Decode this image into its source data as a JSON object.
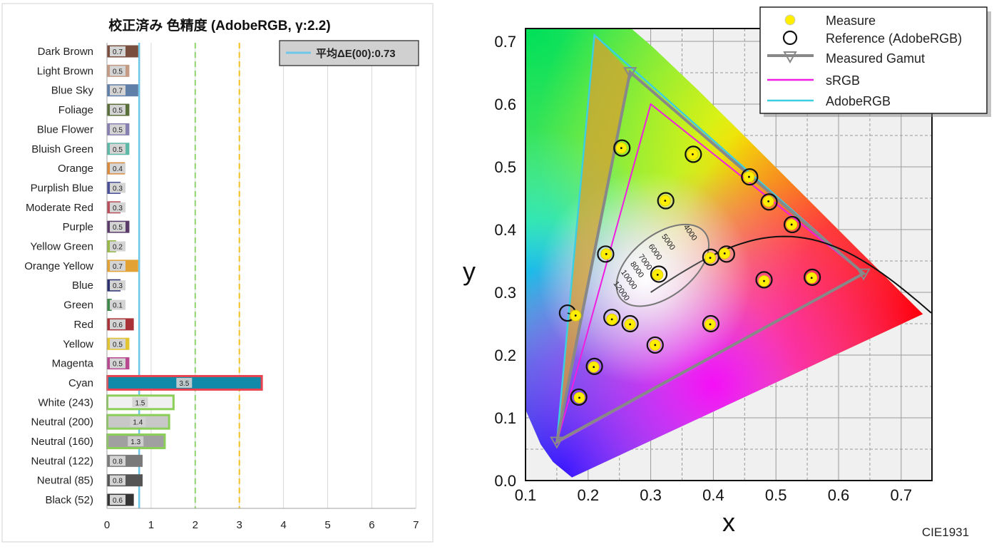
{
  "bar_chart": {
    "title": "校正済み 色精度 (AdobeRGB, γ:2.2)",
    "legend_label": "平均ΔE(00):0.73",
    "average": 0.73,
    "reference_lines": [
      2,
      3
    ],
    "x_ticks": [
      "0",
      "1",
      "2",
      "3",
      "4",
      "5",
      "6",
      "7"
    ],
    "colors": {
      "avg_line": "#6ec6e8",
      "ref2_line": "#8fd36e",
      "ref3_line": "#f2c020",
      "highlight_red": "#e8434f",
      "highlight_green": "#8ccf58"
    }
  },
  "cie_chart": {
    "ylabel": "y",
    "xlabel": "x",
    "footer": "CIE1931",
    "x_ticks": [
      "0.1",
      "0.2",
      "0.3",
      "0.4",
      "0.5",
      "0.6",
      "0.7"
    ],
    "y_ticks": [
      "0.0",
      "0.1",
      "0.2",
      "0.3",
      "0.4",
      "0.5",
      "0.6",
      "0.7"
    ],
    "legend": [
      "Measure",
      "Reference (AdobeRGB)",
      "Measured Gamut",
      "sRGB",
      "AdobeRGB"
    ],
    "cct_labels": [
      "4000",
      "5000",
      "6000",
      "7000",
      "8000",
      "10000",
      "12000"
    ],
    "colors": {
      "srgb": "#f01ee0",
      "adobergb": "#3ccfe0",
      "measured_gamut": "#888888",
      "measure_fill": "#ffee00"
    }
  },
  "chart_data": [
    {
      "type": "bar",
      "title": "校正済み 色精度 (AdobeRGB, γ:2.2)",
      "xlim": [
        0,
        7
      ],
      "categories": [
        "Dark Brown",
        "Light Brown",
        "Blue Sky",
        "Foliage",
        "Blue Flower",
        "Bluish Green",
        "Orange",
        "Purplish Blue",
        "Moderate Red",
        "Purple",
        "Yellow Green",
        "Orange Yellow",
        "Blue",
        "Green",
        "Red",
        "Yellow",
        "Magenta",
        "Cyan",
        "White (243)",
        "Neutral (200)",
        "Neutral (160)",
        "Neutral (122)",
        "Neutral (85)",
        "Black (52)"
      ],
      "values": [
        0.7,
        0.5,
        0.7,
        0.5,
        0.5,
        0.5,
        0.4,
        0.3,
        0.3,
        0.5,
        0.2,
        0.7,
        0.3,
        0.1,
        0.6,
        0.5,
        0.5,
        3.5,
        1.5,
        1.4,
        1.3,
        0.8,
        0.8,
        0.6
      ],
      "series_colors": [
        "#7a4e3e",
        "#c49a85",
        "#5f7fa8",
        "#5a6e3a",
        "#8580b0",
        "#5eb8a8",
        "#d98a3c",
        "#4a5098",
        "#b84e5a",
        "#5a3a68",
        "#98b848",
        "#e2a234",
        "#2a3070",
        "#3c8848",
        "#a83238",
        "#e2c430",
        "#b84890",
        "#108aa8",
        "#f0f0f0",
        "#c8c8c8",
        "#a0a0a0",
        "#7a7a7a",
        "#555555",
        "#343434"
      ]
    },
    {
      "type": "scatter",
      "title": "",
      "xlabel": "x",
      "ylabel": "y",
      "xlim": [
        0.1,
        0.73
      ],
      "ylim": [
        0.0,
        0.72
      ],
      "series": [
        {
          "name": "Measure",
          "points": [
            [
              0.253,
              0.53
            ],
            [
              0.367,
              0.52
            ],
            [
              0.457,
              0.484
            ],
            [
              0.323,
              0.446
            ],
            [
              0.488,
              0.445
            ],
            [
              0.525,
              0.408
            ],
            [
              0.229,
              0.361
            ],
            [
              0.395,
              0.355
            ],
            [
              0.418,
              0.362
            ],
            [
              0.311,
              0.328
            ],
            [
              0.481,
              0.318
            ],
            [
              0.557,
              0.323
            ],
            [
              0.18,
              0.263
            ],
            [
              0.238,
              0.257
            ],
            [
              0.267,
              0.249
            ],
            [
              0.395,
              0.249
            ],
            [
              0.307,
              0.216
            ],
            [
              0.209,
              0.181
            ],
            [
              0.186,
              0.132
            ]
          ]
        },
        {
          "name": "Reference (AdobeRGB)",
          "points": [
            [
              0.254,
              0.53
            ],
            [
              0.368,
              0.52
            ],
            [
              0.458,
              0.484
            ],
            [
              0.324,
              0.446
            ],
            [
              0.489,
              0.444
            ],
            [
              0.526,
              0.408
            ],
            [
              0.228,
              0.361
            ],
            [
              0.396,
              0.356
            ],
            [
              0.421,
              0.361
            ],
            [
              0.313,
              0.329
            ],
            [
              0.481,
              0.32
            ],
            [
              0.558,
              0.324
            ],
            [
              0.167,
              0.267
            ],
            [
              0.238,
              0.26
            ],
            [
              0.267,
              0.25
            ],
            [
              0.396,
              0.25
            ],
            [
              0.307,
              0.216
            ],
            [
              0.21,
              0.182
            ],
            [
              0.185,
              0.133
            ]
          ]
        },
        {
          "name": "Measured Gamut",
          "points": [
            [
              0.267,
              0.651
            ],
            [
              0.64,
              0.33
            ],
            [
              0.15,
              0.062
            ]
          ]
        },
        {
          "name": "sRGB",
          "points": [
            [
              0.3,
              0.6
            ],
            [
              0.64,
              0.33
            ],
            [
              0.15,
              0.06
            ]
          ]
        },
        {
          "name": "AdobeRGB",
          "points": [
            [
              0.21,
              0.71
            ],
            [
              0.64,
              0.33
            ],
            [
              0.15,
              0.06
            ]
          ]
        }
      ]
    }
  ]
}
